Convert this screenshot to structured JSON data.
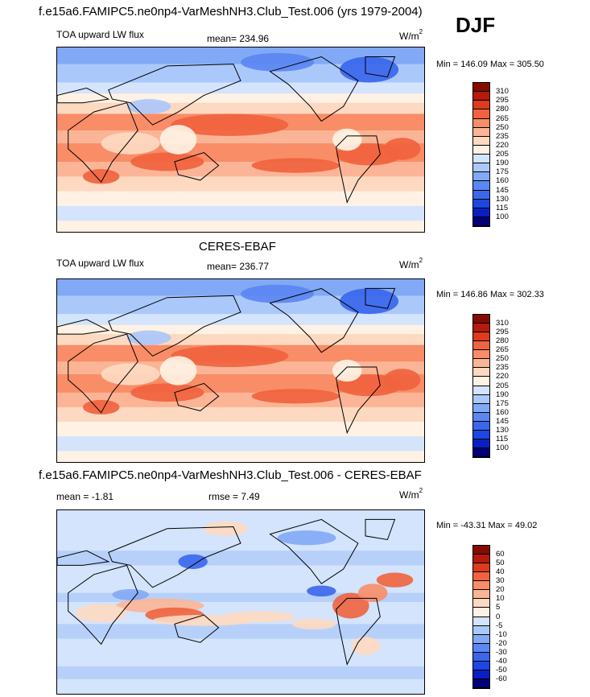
{
  "header": {
    "main_title": "f.e15a6.FAMIPC5.ne0np4-VarMeshNH3.Club_Test.006 (yrs 1979-2004)",
    "season": "DJF"
  },
  "panels": [
    {
      "id": "model",
      "title": "",
      "left_label": "TOA upward LW flux",
      "center_label": "mean= 234.96",
      "right_label": "",
      "units": "W/m",
      "units_sup": "2",
      "minmax": "Min = 146.09 Max = 305.50"
    },
    {
      "id": "obs",
      "title": "CERES-EBAF",
      "left_label": "TOA upward LW flux",
      "center_label": "mean= 236.77",
      "right_label": "",
      "units": "W/m",
      "units_sup": "2",
      "minmax": "Min = 146.86 Max = 302.33"
    },
    {
      "id": "diff",
      "title": "f.e15a6.FAMIPC5.ne0np4-VarMeshNH3.Club_Test.006 - CERES-EBAF",
      "left_label": "mean =  -1.81",
      "center_label": "rmse =   7.49",
      "right_label": "",
      "units": "W/m",
      "units_sup": "2",
      "minmax": "Min = -43.31 Max =  49.02"
    }
  ],
  "chart_data": [
    {
      "type": "heatmap",
      "title": "TOA upward LW flux",
      "units": "W/m2",
      "mean": 234.96,
      "min": 146.09,
      "max": 305.5,
      "colorbar_levels": [
        100,
        115,
        130,
        145,
        160,
        175,
        190,
        205,
        220,
        235,
        250,
        265,
        280,
        295,
        310
      ],
      "colorbar_colors": [
        "#000079",
        "#0a1fc2",
        "#1e46e0",
        "#3a66ec",
        "#5b87f2",
        "#82a9f6",
        "#abc8fa",
        "#d3e4fc",
        "#fff2e4",
        "#fdd9c1",
        "#fbb596",
        "#f88d67",
        "#f0633e",
        "#dc3b1c",
        "#b51a0a",
        "#850b00"
      ]
    },
    {
      "type": "heatmap",
      "title": "CERES-EBAF",
      "units": "W/m2",
      "mean": 236.77,
      "min": 146.86,
      "max": 302.33,
      "colorbar_levels": [
        100,
        115,
        130,
        145,
        160,
        175,
        190,
        205,
        220,
        235,
        250,
        265,
        280,
        295,
        310
      ],
      "colorbar_colors": [
        "#000079",
        "#0a1fc2",
        "#1e46e0",
        "#3a66ec",
        "#5b87f2",
        "#82a9f6",
        "#abc8fa",
        "#d3e4fc",
        "#fff2e4",
        "#fdd9c1",
        "#fbb596",
        "#f88d67",
        "#f0633e",
        "#dc3b1c",
        "#b51a0a",
        "#850b00"
      ]
    },
    {
      "type": "heatmap",
      "title": "f.e15a6.FAMIPC5.ne0np4-VarMeshNH3.Club_Test.006 - CERES-EBAF",
      "units": "W/m2",
      "mean": -1.81,
      "rmse": 7.49,
      "min": -43.31,
      "max": 49.02,
      "colorbar_levels": [
        -60,
        -50,
        -40,
        -30,
        -20,
        -10,
        -5,
        0,
        5,
        10,
        20,
        30,
        40,
        50,
        60
      ],
      "colorbar_colors": [
        "#000079",
        "#0a1fc2",
        "#1e46e0",
        "#3a66ec",
        "#5b87f2",
        "#82a9f6",
        "#abc8fa",
        "#d3e4fc",
        "#fff2e4",
        "#fdd9c1",
        "#fbb596",
        "#f88d67",
        "#f0633e",
        "#dc3b1c",
        "#b51a0a",
        "#850b00"
      ]
    }
  ]
}
